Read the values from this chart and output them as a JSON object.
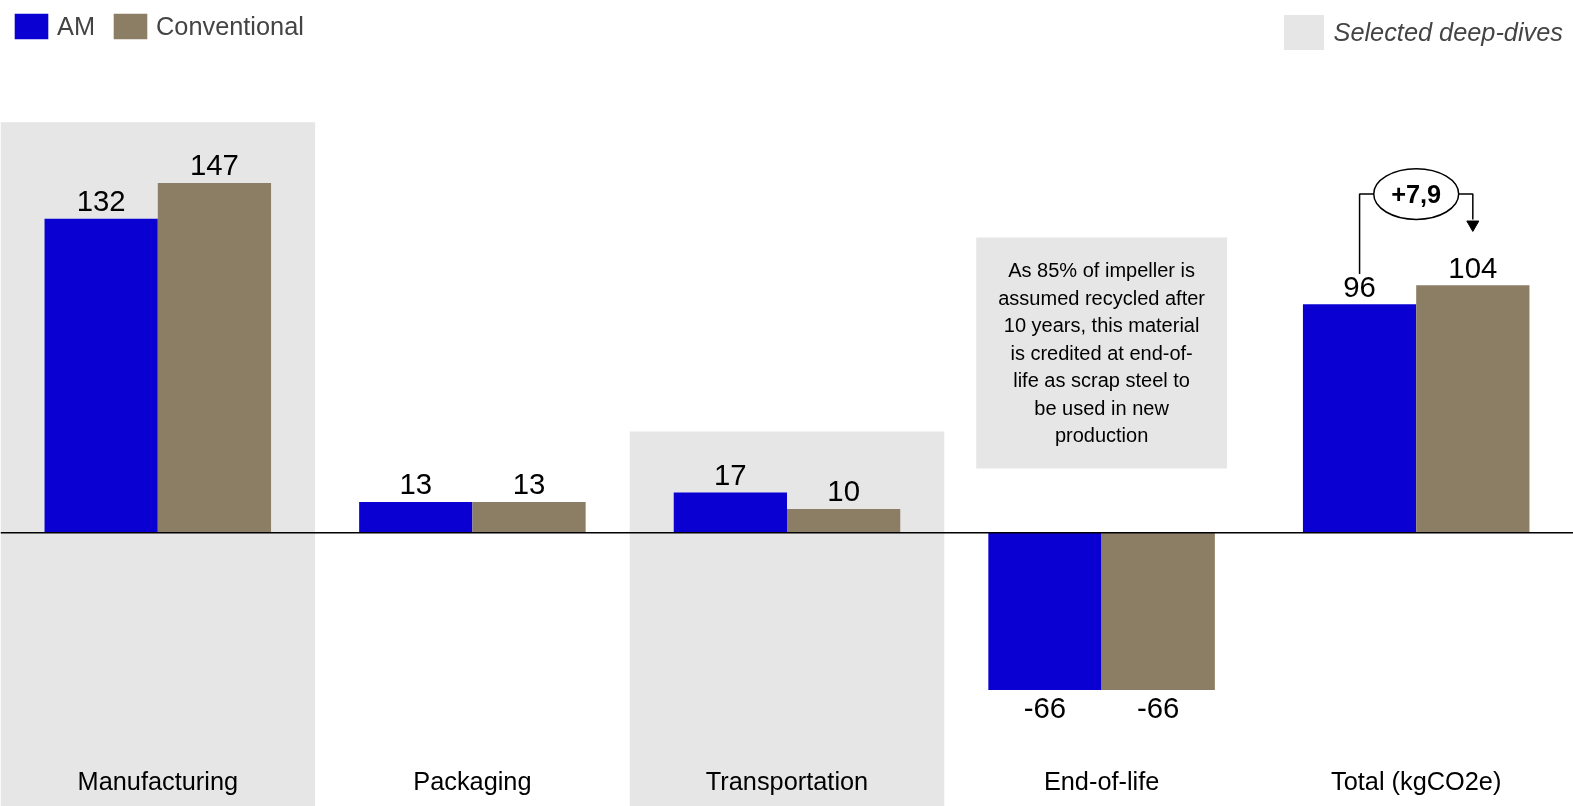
{
  "chart_data": {
    "type": "bar",
    "categories": [
      "Manufacturing",
      "Packaging",
      "Transportation",
      "End-of-life",
      "Total (kgCO2e)"
    ],
    "series": [
      {
        "name": "AM",
        "color": "#0a00d2",
        "values": [
          132,
          13,
          17,
          -66,
          96
        ]
      },
      {
        "name": "Conventional",
        "color": "#8c7e64",
        "values": [
          147,
          13,
          10,
          -66,
          104
        ]
      }
    ],
    "data_labels": true,
    "bands": [
      {
        "axis": "x",
        "from": "Manufacturing",
        "to": "Manufacturing",
        "label": "Selected deep-dives",
        "color": "#e6e6e6"
      },
      {
        "axis": "x",
        "from": "Transportation",
        "to": "Transportation",
        "color": "#e6e6e6"
      }
    ],
    "annotations": [
      "As 85% of impeller is assumed recycled after 10 years, this material is credited at end-of-life as scrap steel to be used in new production",
      "+7,9"
    ],
    "legend": "top left",
    "grid": false
  }
}
